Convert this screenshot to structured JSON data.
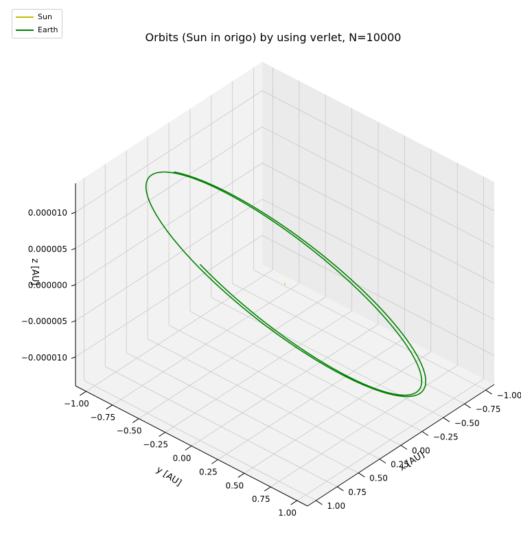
{
  "chart_data": {
    "type": "line",
    "projection": "3d",
    "title": "Orbits (Sun in origo) by using verlet, N=10000",
    "xlabel": "x [AU]",
    "ylabel": "y [AU]",
    "zlabel": "z [AU]",
    "xlim": [
      -1.1,
      1.1
    ],
    "ylim": [
      -1.1,
      1.1
    ],
    "zlim": [
      -1.4e-05,
      1.4e-05
    ],
    "xticks": [
      "−1.00",
      "−0.75",
      "−0.50",
      "−0.25",
      "0.00",
      "0.25",
      "0.50",
      "0.75",
      "1.00"
    ],
    "yticks": [
      "−1.00",
      "−0.75",
      "−0.50",
      "−0.25",
      "0.00",
      "0.25",
      "0.50",
      "0.75",
      "1.00"
    ],
    "zticks": [
      "0.000010",
      "0.000005",
      "0.000000",
      "−0.000005",
      "−0.000010"
    ],
    "grid": true,
    "legend_position": "top-left",
    "series": [
      {
        "name": "Sun",
        "color": "#bfbf00",
        "points": [
          [
            0,
            0,
            0
          ]
        ]
      },
      {
        "name": "Earth",
        "color": "#008000",
        "orbit": {
          "radius_au": 1.0,
          "inclination_amplitude_au": 1.28e-05,
          "revolutions": 1.75,
          "radial_drift_au_per_revolution": 0.03
        }
      }
    ]
  }
}
